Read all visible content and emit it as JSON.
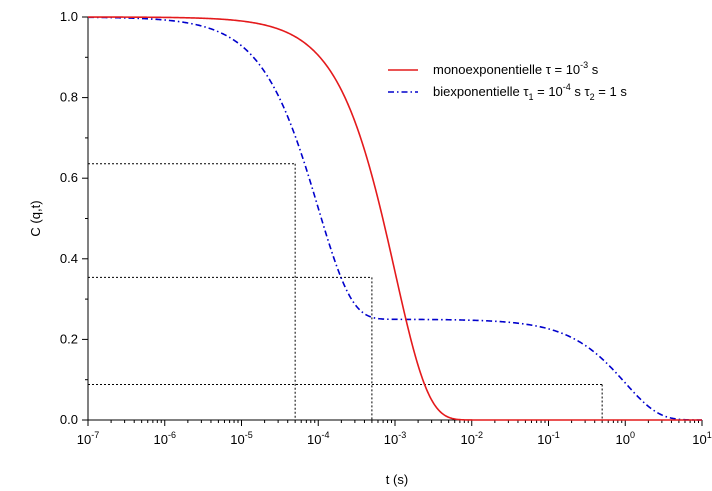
{
  "chart_data": {
    "type": "line",
    "title": "",
    "xlabel": "t (s)",
    "ylabel": "C (q,t)",
    "x_scale": "log",
    "xlim": [
      1e-07,
      10
    ],
    "ylim": [
      0,
      1.0
    ],
    "grid": false,
    "legend_position": "top-right",
    "x_ticks": [
      {
        "base": "10",
        "exp": "-7"
      },
      {
        "base": "10",
        "exp": "-6"
      },
      {
        "base": "10",
        "exp": "-5"
      },
      {
        "base": "10",
        "exp": "-4"
      },
      {
        "base": "10",
        "exp": "-3"
      },
      {
        "base": "10",
        "exp": "-2"
      },
      {
        "base": "10",
        "exp": "-1"
      },
      {
        "base": "10",
        "exp": "0"
      },
      {
        "base": "10",
        "exp": "1"
      }
    ],
    "y_ticks": [
      "0.0",
      "0.2",
      "0.4",
      "0.6",
      "0.8",
      "1.0"
    ],
    "series": [
      {
        "name": "monoexponentielle",
        "legend_parts": [
          "monoexponentielle  τ = 10",
          "-3",
          " s"
        ],
        "color": "#e41a1c",
        "line_style": "solid",
        "function": "exp(-t/tau)",
        "tau": 0.001
      },
      {
        "name": "biexponentielle",
        "legend_parts": [
          "biexponentielle     τ",
          "1",
          " = 10",
          "-4",
          " s   τ",
          "2",
          " = 1 s"
        ],
        "color": "#0000cc",
        "line_style": "dash-dot",
        "function": "0.75*exp(-t/tau1) + 0.25*exp(-t/tau2)",
        "weights": [
          0.75,
          0.25
        ],
        "tau1": 0.0001,
        "tau2": 1
      }
    ],
    "reference_lines": [
      {
        "x": 5e-05,
        "y": 0.636
      },
      {
        "x": 0.0005,
        "y": 0.354
      },
      {
        "x": 0.5,
        "y": 0.088
      }
    ]
  }
}
